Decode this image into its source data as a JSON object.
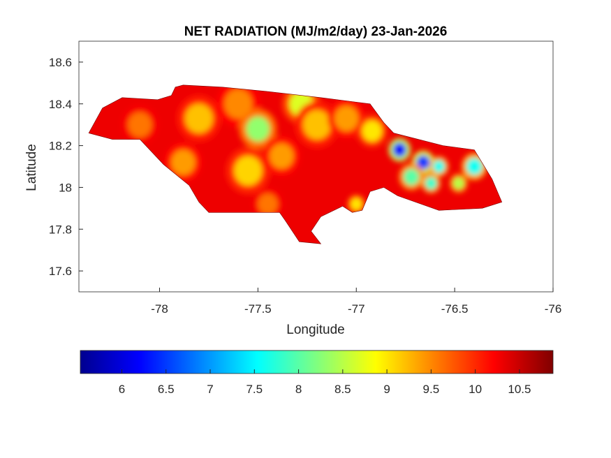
{
  "chart_data": {
    "type": "heatmap",
    "title": "NET RADIATION (MJ/m2/day) 23-Jan-2026",
    "xlabel": "Longitude",
    "ylabel": "Latitude",
    "xlim": [
      -78.41,
      -76
    ],
    "ylim": [
      17.5,
      18.7
    ],
    "xticks": [
      -78,
      -77.5,
      -77,
      -76.5,
      -76
    ],
    "xtick_labels": [
      "-78",
      "-77.5",
      "-77",
      "-76.5",
      "-76"
    ],
    "yticks": [
      17.6,
      17.8,
      18,
      18.2,
      18.4,
      18.6
    ],
    "ytick_labels": [
      "17.6",
      "17.8",
      "18",
      "18.2",
      "18.4",
      "18.6"
    ],
    "grid": false,
    "colormap": "jet",
    "colorbar": {
      "location": "bottom",
      "range": [
        5.53,
        10.88
      ],
      "ticks": [
        6,
        6.5,
        7,
        7.5,
        8,
        8.5,
        9,
        9.5,
        10,
        10.5
      ],
      "tick_labels": [
        "6",
        "6.5",
        "7",
        "7.5",
        "8",
        "8.5",
        "9",
        "9.5",
        "10",
        "10.5"
      ]
    },
    "background_value": 10.3,
    "outline": [
      [
        -78.36,
        18.26
      ],
      [
        -78.29,
        18.38
      ],
      [
        -78.19,
        18.43
      ],
      [
        -78.01,
        18.42
      ],
      [
        -77.94,
        18.44
      ],
      [
        -77.92,
        18.48
      ],
      [
        -77.88,
        18.49
      ],
      [
        -77.68,
        18.48
      ],
      [
        -77.46,
        18.46
      ],
      [
        -77.18,
        18.43
      ],
      [
        -76.93,
        18.4
      ],
      [
        -76.86,
        18.31
      ],
      [
        -76.81,
        18.26
      ],
      [
        -76.56,
        18.2
      ],
      [
        -76.4,
        18.18
      ],
      [
        -76.31,
        18.04
      ],
      [
        -76.26,
        17.93
      ],
      [
        -76.36,
        17.9
      ],
      [
        -76.58,
        17.89
      ],
      [
        -76.79,
        17.96
      ],
      [
        -76.86,
        18.0
      ],
      [
        -76.93,
        17.98
      ],
      [
        -76.97,
        17.89
      ],
      [
        -77.02,
        17.88
      ],
      [
        -77.07,
        17.91
      ],
      [
        -77.18,
        17.86
      ],
      [
        -77.23,
        17.79
      ],
      [
        -77.18,
        17.73
      ],
      [
        -77.29,
        17.74
      ],
      [
        -77.36,
        17.84
      ],
      [
        -77.39,
        17.88
      ],
      [
        -77.75,
        17.88
      ],
      [
        -77.8,
        17.93
      ],
      [
        -77.85,
        18.01
      ],
      [
        -77.98,
        18.11
      ],
      [
        -78.1,
        18.23
      ],
      [
        -78.24,
        18.23
      ]
    ],
    "features": [
      {
        "lon": -78.1,
        "lat": 18.3,
        "value": 9.6,
        "r": 0.06
      },
      {
        "lon": -77.8,
        "lat": 18.33,
        "value": 9.2,
        "r": 0.07
      },
      {
        "lon": -77.88,
        "lat": 18.12,
        "value": 9.4,
        "r": 0.06
      },
      {
        "lon": -77.6,
        "lat": 18.4,
        "value": 9.5,
        "r": 0.07
      },
      {
        "lon": -77.5,
        "lat": 18.28,
        "value": 8.3,
        "r": 0.06
      },
      {
        "lon": -77.55,
        "lat": 18.08,
        "value": 9.1,
        "r": 0.07
      },
      {
        "lon": -77.38,
        "lat": 18.15,
        "value": 9.4,
        "r": 0.06
      },
      {
        "lon": -77.28,
        "lat": 18.4,
        "value": 8.7,
        "r": 0.06
      },
      {
        "lon": -77.2,
        "lat": 18.3,
        "value": 9.2,
        "r": 0.07
      },
      {
        "lon": -77.05,
        "lat": 18.33,
        "value": 9.4,
        "r": 0.06
      },
      {
        "lon": -76.92,
        "lat": 18.27,
        "value": 9.0,
        "r": 0.05
      },
      {
        "lon": -77.0,
        "lat": 17.92,
        "value": 9.0,
        "r": 0.03
      },
      {
        "lon": -77.45,
        "lat": 17.92,
        "value": 9.6,
        "r": 0.05
      },
      {
        "lon": -76.78,
        "lat": 18.18,
        "value": 6.2,
        "r": 0.035
      },
      {
        "lon": -76.66,
        "lat": 18.12,
        "value": 6.5,
        "r": 0.035
      },
      {
        "lon": -76.58,
        "lat": 18.1,
        "value": 7.6,
        "r": 0.03
      },
      {
        "lon": -76.72,
        "lat": 18.05,
        "value": 8.0,
        "r": 0.04
      },
      {
        "lon": -76.62,
        "lat": 18.02,
        "value": 7.8,
        "r": 0.03
      },
      {
        "lon": -76.4,
        "lat": 18.1,
        "value": 7.6,
        "r": 0.04
      },
      {
        "lon": -76.48,
        "lat": 18.02,
        "value": 8.5,
        "r": 0.03
      }
    ]
  }
}
